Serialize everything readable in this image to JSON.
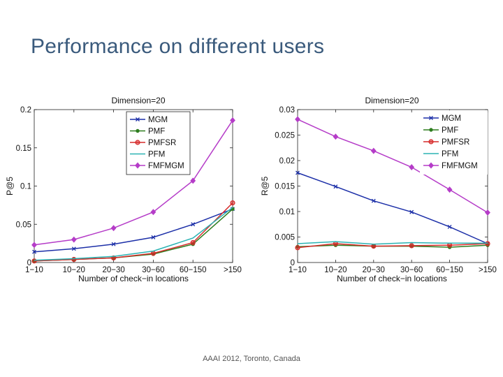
{
  "slide": {
    "title": "Performance on different users",
    "footer": "AAAI 2012, Toronto, Canada"
  },
  "chart_data": [
    {
      "type": "line",
      "title": "Dimension=20",
      "xlabel": "Number of check−in locations",
      "ylabel": "P@5",
      "categories": [
        "1−10",
        "10−20",
        "20−30",
        "30−60",
        "60−150",
        ">150"
      ],
      "ylim": [
        0,
        0.2
      ],
      "yticks": [
        0,
        0.05,
        0.1,
        0.15,
        0.2
      ],
      "ytick_labels": [
        "0",
        "0.05",
        "0.1",
        "0.15",
        "0.2"
      ],
      "grid": false,
      "legend_position": "top-right",
      "series": [
        {
          "name": "MGM",
          "color": "#1c2fa8",
          "marker": "x",
          "values": [
            0.014,
            0.018,
            0.024,
            0.033,
            0.05,
            0.07
          ]
        },
        {
          "name": "PMF",
          "color": "#2e7d1f",
          "marker": "dot",
          "values": [
            0.002,
            0.004,
            0.006,
            0.011,
            0.024,
            0.07
          ]
        },
        {
          "name": "PMFSR",
          "color": "#d62a2a",
          "marker": "circle",
          "values": [
            0.002,
            0.004,
            0.006,
            0.012,
            0.026,
            0.078
          ]
        },
        {
          "name": "PFM",
          "color": "#2bb3b3",
          "marker": "none",
          "values": [
            0.003,
            0.005,
            0.008,
            0.015,
            0.032,
            0.072
          ]
        },
        {
          "name": "FMFMGM",
          "color": "#b53cc8",
          "marker": "diamond",
          "values": [
            0.023,
            0.03,
            0.045,
            0.066,
            0.107,
            0.186
          ]
        }
      ]
    },
    {
      "type": "line",
      "title": "Dimension=20",
      "xlabel": "Number of check−in locations",
      "ylabel": "R@5",
      "categories": [
        "1−10",
        "10−20",
        "20−30",
        "30−60",
        "60−150",
        ">150"
      ],
      "ylim": [
        0,
        0.03
      ],
      "yticks": [
        0,
        0.005,
        0.01,
        0.015,
        0.02,
        0.025,
        0.03
      ],
      "ytick_labels": [
        "0",
        "0.005",
        "0.01",
        "0.015",
        "0.02",
        "0.025",
        "0.03"
      ],
      "grid": false,
      "legend_position": "top-right",
      "series": [
        {
          "name": "MGM",
          "color": "#1c2fa8",
          "marker": "x",
          "values": [
            0.0176,
            0.0149,
            0.0121,
            0.0099,
            0.007,
            0.0037
          ]
        },
        {
          "name": "PMF",
          "color": "#2e7d1f",
          "marker": "dot",
          "values": [
            0.0031,
            0.0034,
            0.0032,
            0.0032,
            0.003,
            0.0034
          ]
        },
        {
          "name": "PMFSR",
          "color": "#d62a2a",
          "marker": "circle",
          "values": [
            0.0029,
            0.0037,
            0.0032,
            0.0033,
            0.0034,
            0.0037
          ]
        },
        {
          "name": "PFM",
          "color": "#2bb3b3",
          "marker": "none",
          "values": [
            0.0037,
            0.0041,
            0.0036,
            0.0039,
            0.0038,
            0.0038
          ]
        },
        {
          "name": "FMFMGM",
          "color": "#b53cc8",
          "marker": "diamond",
          "values": [
            0.0281,
            0.0247,
            0.0219,
            0.0187,
            0.0143,
            0.0098
          ]
        }
      ]
    }
  ]
}
